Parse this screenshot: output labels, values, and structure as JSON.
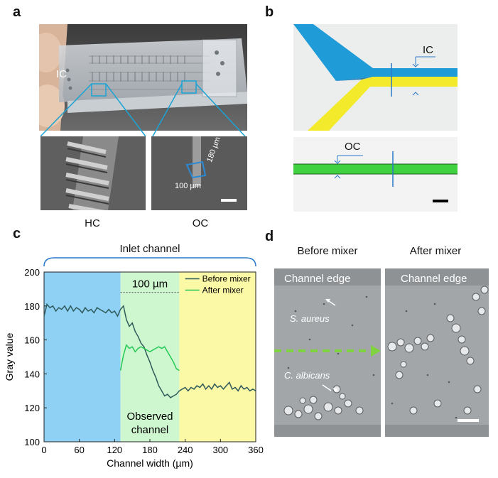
{
  "figure": {
    "panel_a": {
      "letter": "a",
      "chip_label": "IC",
      "sem_left_caption": "HC",
      "sem_right_caption": "OC",
      "dim_width": "100 µm",
      "dim_height": "180 µm"
    },
    "panel_b": {
      "letter": "b",
      "top_label": "IC",
      "bottom_label": "OC",
      "colors": {
        "blue": "#1f9bd7",
        "yellow": "#f2ea2a",
        "green": "#3fd13f"
      }
    },
    "panel_c": {
      "letter": "c",
      "bracket_label": "Inlet channel",
      "span_label": "100 µm",
      "region_label_line1": "Observed",
      "region_label_line2": "channel",
      "colors": {
        "blue_region": "#8fd0f5",
        "green_region": "#cff7cf",
        "yellow_region": "#fbf8a6",
        "before": "#2f5a5a",
        "after": "#22c955"
      }
    },
    "panel_d": {
      "letter": "d",
      "left_title": "Before mixer",
      "right_title": "After mixer",
      "edge_label_left": "Channel edge",
      "edge_label_right": "Channel edge",
      "species_1": "S. aureus",
      "species_2": "C. albicans"
    }
  },
  "chart_data": {
    "type": "line",
    "title": "",
    "xlabel": "Channel width (µm)",
    "ylabel": "Gray value",
    "xlim": [
      0,
      360
    ],
    "ylim": [
      100,
      200
    ],
    "xticks": [
      0,
      60,
      120,
      180,
      240,
      300,
      360
    ],
    "yticks": [
      100,
      120,
      140,
      160,
      180,
      200
    ],
    "regions": [
      {
        "from": 0,
        "to": 130,
        "color": "blue"
      },
      {
        "from": 130,
        "to": 230,
        "color": "green"
      },
      {
        "from": 230,
        "to": 360,
        "color": "yellow"
      }
    ],
    "legend_position": "top-right",
    "series": [
      {
        "name": "Before mixer",
        "x": [
          0,
          5,
          10,
          15,
          20,
          25,
          30,
          35,
          40,
          45,
          50,
          55,
          60,
          65,
          70,
          75,
          80,
          85,
          90,
          95,
          100,
          105,
          110,
          115,
          120,
          125,
          130,
          135,
          140,
          145,
          150,
          155,
          160,
          165,
          170,
          175,
          180,
          185,
          190,
          195,
          200,
          205,
          210,
          215,
          220,
          225,
          230,
          235,
          240,
          245,
          250,
          255,
          260,
          265,
          270,
          275,
          280,
          285,
          290,
          295,
          300,
          305,
          310,
          315,
          320,
          325,
          330,
          335,
          340,
          345,
          350,
          355,
          360
        ],
        "y": [
          174,
          181,
          179,
          180,
          177,
          179,
          178,
          180,
          177,
          180,
          177,
          179,
          178,
          176,
          179,
          177,
          178,
          176,
          179,
          178,
          177,
          176,
          178,
          176,
          177,
          174,
          178,
          180,
          172,
          168,
          170,
          165,
          162,
          158,
          156,
          151,
          147,
          142,
          138,
          133,
          130,
          127,
          128,
          126,
          127,
          128,
          130,
          131,
          132,
          130,
          132,
          131,
          133,
          132,
          134,
          131,
          133,
          131,
          134,
          132,
          133,
          131,
          133,
          135,
          131,
          132,
          130,
          133,
          131,
          132,
          130,
          131,
          130
        ]
      },
      {
        "name": "After mixer",
        "x": [
          130,
          135,
          140,
          145,
          150,
          155,
          160,
          165,
          170,
          175,
          180,
          185,
          190,
          195,
          200,
          205,
          210,
          215,
          220,
          225,
          230
        ],
        "y": [
          142,
          151,
          157,
          155,
          156,
          153,
          155,
          156,
          155,
          154,
          153,
          154,
          155,
          156,
          155,
          156,
          153,
          150,
          147,
          143,
          142
        ]
      }
    ]
  }
}
